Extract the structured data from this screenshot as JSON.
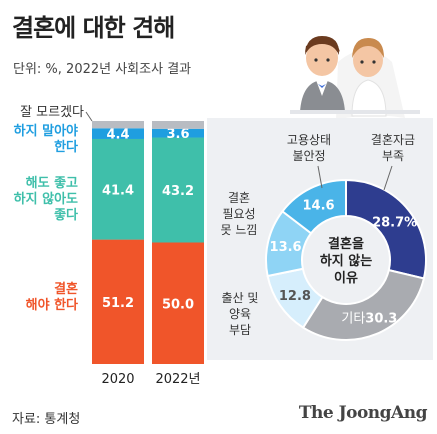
{
  "header": {
    "title": "결혼에 대한 견해",
    "unit": "단위: %, 2022년 사회조사 결과"
  },
  "footer": {
    "source": "자료: 통계청",
    "brand": "The JoongAng"
  },
  "illustration": {
    "icon": "bride-groom-icon"
  },
  "chart_data": [
    {
      "type": "bar",
      "stacked": true,
      "categories": [
        "2020",
        "2022년"
      ],
      "series": [
        {
          "name": "결혼\n해야 한다",
          "values": [
            51.2,
            50.0
          ],
          "labels": [
            "51.2",
            "50.0"
          ],
          "color": "#f0552a"
        },
        {
          "name": "해도 좋고\n하지 않아도\n좋다",
          "values": [
            41.4,
            43.2
          ],
          "labels": [
            "41.4",
            "43.2"
          ],
          "color": "#3fbfaa"
        },
        {
          "name": "하지 말아야\n한다",
          "values": [
            4.4,
            3.6
          ],
          "labels": [
            "4.4",
            "3.6"
          ],
          "color": "#1f9ee0"
        },
        {
          "name": "잘 모르겠다",
          "values": [
            3.0,
            3.2
          ],
          "color": "#b8bcc2"
        }
      ],
      "ylim": [
        0,
        100
      ]
    },
    {
      "type": "pie",
      "donut": true,
      "center_label": "결혼을\n하지 않는\n이유",
      "slices": [
        {
          "name": "결혼자금\n부족",
          "value": 28.7,
          "label": "28.7%",
          "color": "#2e3d8f"
        },
        {
          "name": "기타",
          "value": 30.3,
          "label": "30.3",
          "color": "#a9abb0"
        },
        {
          "name": "출산 및\n양육\n부담",
          "value": 12.8,
          "label": "12.8",
          "color": "#d6eefc"
        },
        {
          "name": "결혼\n필요성\n못 느낌",
          "value": 13.6,
          "label": "13.6",
          "color": "#8fd4f5"
        },
        {
          "name": "고용상태\n불안정",
          "value": 14.6,
          "label": "14.6",
          "color": "#4ab4e8"
        }
      ]
    }
  ]
}
